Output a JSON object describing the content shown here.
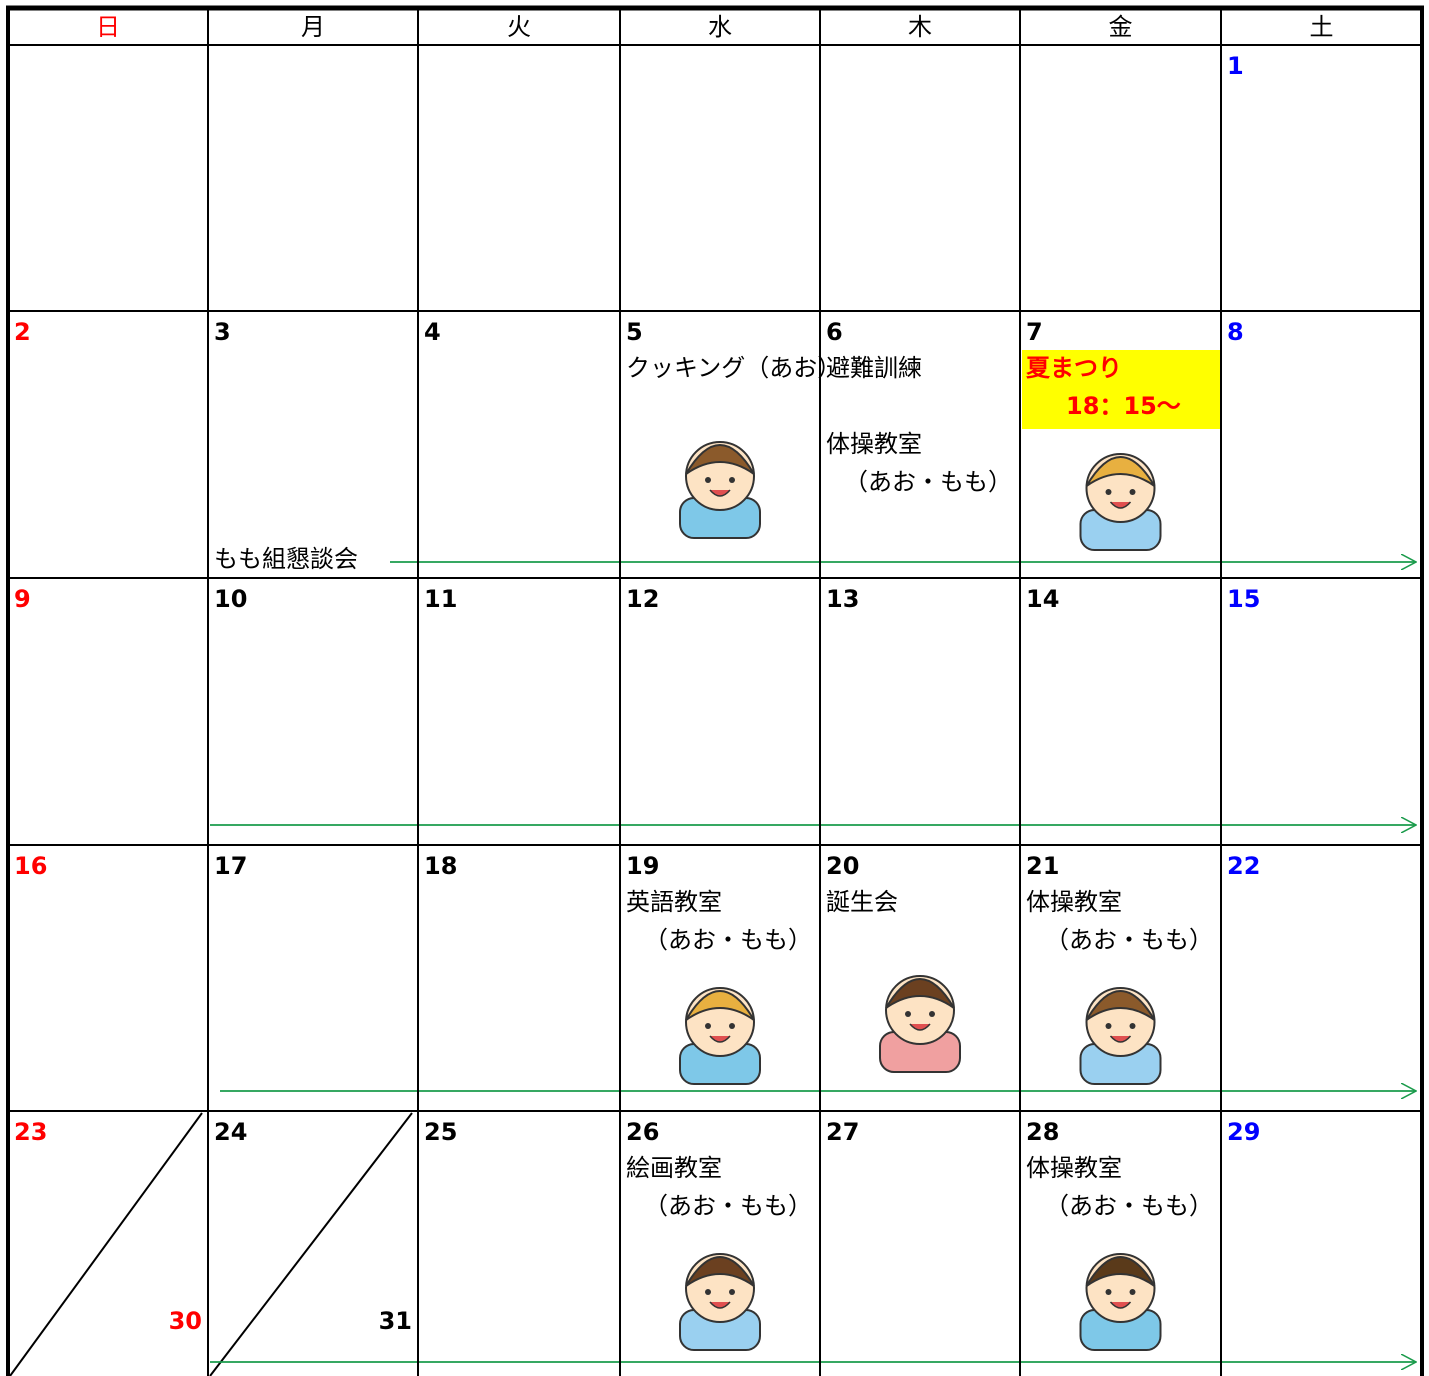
{
  "header": {
    "weekdays": [
      "日",
      "月",
      "火",
      "水",
      "木",
      "金",
      "土"
    ]
  },
  "weeks": [
    {
      "days": [
        null,
        null,
        null,
        null,
        null,
        null,
        {
          "date": "1"
        }
      ]
    },
    {
      "days": [
        {
          "date": "2"
        },
        {
          "date": "3"
        },
        {
          "date": "4"
        },
        {
          "date": "5",
          "events": [
            {
              "lines": [
                "クッキング（あお）"
              ]
            }
          ],
          "illustration": true
        },
        {
          "date": "6",
          "events": [
            {
              "lines": [
                "避難訓練"
              ]
            },
            {
              "lines": [
                "体操教室",
                "（あお・もも）"
              ]
            }
          ]
        },
        {
          "date": "7",
          "events": [
            {
              "lines": [
                "夏まつり",
                "18：15～"
              ],
              "color": "#ff0000",
              "background": "#ffff00"
            }
          ],
          "illustration": true
        },
        {
          "date": "8"
        }
      ],
      "banner": "もも組懇談会",
      "arrow": true
    },
    {
      "days": [
        {
          "date": "9"
        },
        {
          "date": "10"
        },
        {
          "date": "11"
        },
        {
          "date": "12"
        },
        {
          "date": "13"
        },
        {
          "date": "14"
        },
        {
          "date": "15"
        }
      ],
      "arrow": true
    },
    {
      "days": [
        {
          "date": "16"
        },
        {
          "date": "17"
        },
        {
          "date": "18"
        },
        {
          "date": "19",
          "events": [
            {
              "lines": [
                "英語教室",
                "（あお・もも）"
              ]
            }
          ],
          "illustration": true
        },
        {
          "date": "20",
          "events": [
            {
              "lines": [
                "誕生会"
              ]
            }
          ],
          "illustration": true
        },
        {
          "date": "21",
          "events": [
            {
              "lines": [
                "体操教室",
                "（あお・もも）"
              ]
            }
          ],
          "illustration": true
        },
        {
          "date": "22"
        }
      ],
      "arrow": true
    },
    {
      "days": [
        {
          "dates": [
            "23",
            "30"
          ]
        },
        {
          "dates": [
            "24",
            "31"
          ]
        },
        {
          "date": "25"
        },
        {
          "date": "26",
          "events": [
            {
              "lines": [
                "絵画教室",
                "（あお・もも）"
              ]
            }
          ],
          "illustration": true
        },
        {
          "date": "27"
        },
        {
          "date": "28",
          "events": [
            {
              "lines": [
                "体操教室",
                "（あお・もも）"
              ]
            }
          ],
          "illustration": true
        },
        {
          "date": "29"
        }
      ],
      "arrow": true
    }
  ]
}
